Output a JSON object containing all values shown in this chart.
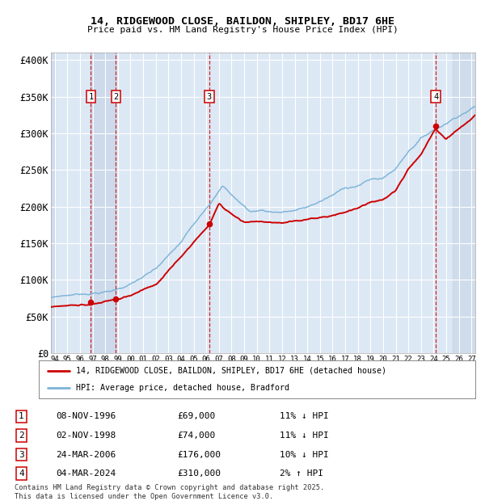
{
  "title_line1": "14, RIDGEWOOD CLOSE, BAILDON, SHIPLEY, BD17 6HE",
  "title_line2": "Price paid vs. HM Land Registry's House Price Index (HPI)",
  "ylabel_ticks": [
    "£0",
    "£50K",
    "£100K",
    "£150K",
    "£200K",
    "£250K",
    "£300K",
    "£350K",
    "£400K"
  ],
  "ytick_vals": [
    0,
    50000,
    100000,
    150000,
    200000,
    250000,
    300000,
    350000,
    400000
  ],
  "ylim": [
    0,
    410000
  ],
  "xlim_start": 1993.7,
  "xlim_end": 2027.3,
  "sale_dates_decimal": [
    1996.86,
    1998.84,
    2006.23,
    2024.17
  ],
  "sale_prices": [
    69000,
    74000,
    176000,
    310000
  ],
  "sale_labels": [
    "1",
    "2",
    "3",
    "4"
  ],
  "hpi_color": "#7ab3d8",
  "price_color": "#cc0000",
  "dashed_line_color": "#cc0000",
  "background_plot": "#dde8f5",
  "background_band": "#c5d5e8",
  "grid_color": "#ffffff",
  "legend_label_red": "14, RIDGEWOOD CLOSE, BAILDON, SHIPLEY, BD17 6HE (detached house)",
  "legend_label_blue": "HPI: Average price, detached house, Bradford",
  "table_rows": [
    [
      "1",
      "08-NOV-1996",
      "£69,000",
      "11% ↓ HPI"
    ],
    [
      "2",
      "02-NOV-1998",
      "£74,000",
      "11% ↓ HPI"
    ],
    [
      "3",
      "24-MAR-2006",
      "£176,000",
      "10% ↓ HPI"
    ],
    [
      "4",
      "04-MAR-2024",
      "£310,000",
      "2% ↑ HPI"
    ]
  ],
  "footnote": "Contains HM Land Registry data © Crown copyright and database right 2025.\nThis data is licensed under the Open Government Licence v3.0.",
  "xtick_years": [
    1994,
    1995,
    1996,
    1997,
    1998,
    1999,
    2000,
    2001,
    2002,
    2003,
    2004,
    2005,
    2006,
    2007,
    2008,
    2009,
    2010,
    2011,
    2012,
    2013,
    2014,
    2015,
    2016,
    2017,
    2018,
    2019,
    2020,
    2021,
    2022,
    2023,
    2024,
    2025,
    2026,
    2027
  ]
}
